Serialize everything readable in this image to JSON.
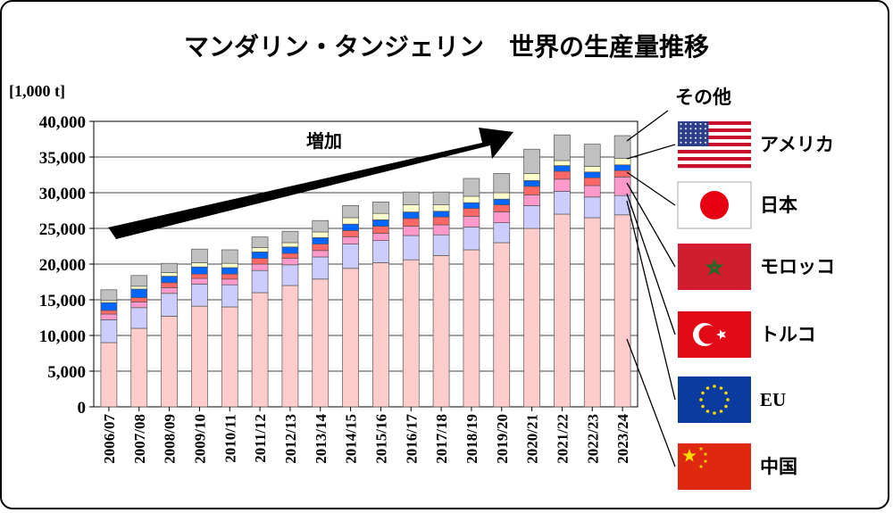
{
  "chart_data": {
    "type": "bar",
    "stacked": true,
    "title": "マンダリン・タンジェリン　世界の生産量推移",
    "unit_label": "[1,000 t]",
    "ylim": [
      0,
      40000
    ],
    "yticks": [
      "0",
      "5,000",
      "10,000",
      "15,000",
      "20,000",
      "25,000",
      "30,000",
      "35,000",
      "40,000"
    ],
    "grid": true,
    "legend_placement": "right",
    "annotation": "増加",
    "categories": [
      "2006/07",
      "2007/08",
      "2008/09",
      "2009/10",
      "2010/11",
      "2011/12",
      "2012/13",
      "2013/14",
      "2014/15",
      "2015/16",
      "2016/17",
      "2017/18",
      "2018/19",
      "2019/20",
      "2020/21",
      "2021/22",
      "2022/23",
      "2023/24"
    ],
    "series": [
      {
        "name": "中国",
        "color": "#ffcccc",
        "values": [
          9000,
          11000,
          12700,
          14100,
          14000,
          16000,
          17000,
          17900,
          19400,
          20200,
          20600,
          21200,
          22000,
          23000,
          25000,
          27000,
          26500,
          26900
        ]
      },
      {
        "name": "EU",
        "color": "#ccccff",
        "values": [
          3200,
          2900,
          3200,
          3100,
          3100,
          3100,
          2900,
          3100,
          3400,
          3100,
          3400,
          2900,
          3200,
          2800,
          3200,
          3200,
          2900,
          2700
        ]
      },
      {
        "name": "トルコ",
        "color": "#ff99cc",
        "values": [
          800,
          800,
          800,
          800,
          800,
          900,
          900,
          900,
          1000,
          1000,
          1300,
          1400,
          1500,
          1500,
          1500,
          1700,
          1600,
          2600
        ]
      },
      {
        "name": "モロッコ",
        "color": "#ff6666",
        "values": [
          500,
          600,
          700,
          600,
          700,
          800,
          700,
          900,
          900,
          1000,
          1100,
          1100,
          1100,
          1000,
          1200,
          1100,
          1100,
          900
        ]
      },
      {
        "name": "日本",
        "color": "#0066ff",
        "values": [
          1100,
          1200,
          900,
          1000,
          900,
          900,
          900,
          900,
          900,
          900,
          900,
          800,
          800,
          800,
          800,
          800,
          800,
          800
        ]
      },
      {
        "name": "アメリカ",
        "color": "#ffffcc",
        "values": [
          300,
          400,
          500,
          600,
          600,
          600,
          600,
          800,
          900,
          900,
          1000,
          900,
          900,
          900,
          1000,
          700,
          800,
          900
        ]
      },
      {
        "name": "その他",
        "color": "#c0c0c0",
        "values": [
          1500,
          1500,
          1300,
          1900,
          1900,
          1500,
          1600,
          1600,
          1700,
          1600,
          1800,
          1800,
          2500,
          2700,
          3400,
          3600,
          3100,
          3200
        ]
      }
    ],
    "legend": [
      {
        "label": "その他",
        "flag": "none"
      },
      {
        "label": "アメリカ",
        "flag": "usa-flag"
      },
      {
        "label": "日本",
        "flag": "japan-flag"
      },
      {
        "label": "モロッコ",
        "flag": "morocco-flag"
      },
      {
        "label": "トルコ",
        "flag": "turkey-flag"
      },
      {
        "label": "EU",
        "flag": "eu-flag"
      },
      {
        "label": "中国",
        "flag": "china-flag"
      }
    ]
  }
}
